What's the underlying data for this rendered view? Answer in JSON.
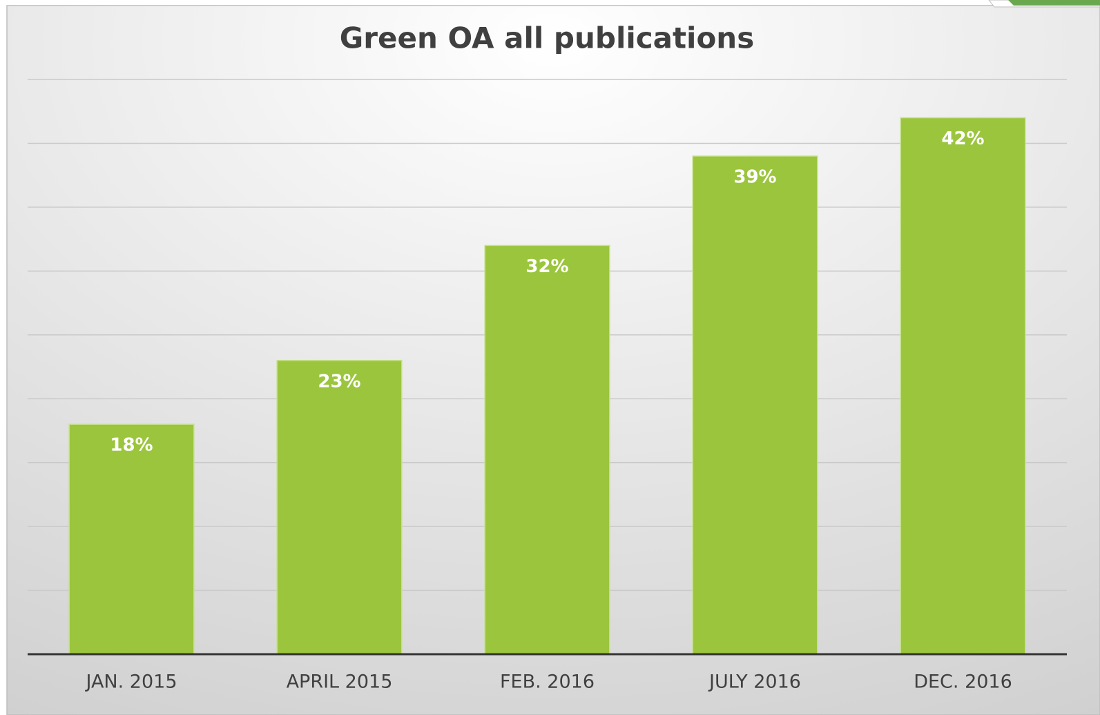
{
  "chart_data": {
    "type": "bar",
    "title": "Green OA all publications",
    "categories": [
      "JAN. 2015",
      "APRIL 2015",
      "FEB. 2016",
      "JULY 2016",
      "DEC. 2016"
    ],
    "values": [
      18,
      23,
      32,
      39,
      42
    ],
    "value_labels": [
      "18%",
      "23%",
      "32%",
      "39%",
      "42%"
    ],
    "color": "#9bc53d",
    "ylim": [
      0,
      45
    ],
    "yticks": [
      0,
      5,
      10,
      15,
      20,
      25,
      30,
      35,
      40,
      45
    ],
    "grid": true
  }
}
